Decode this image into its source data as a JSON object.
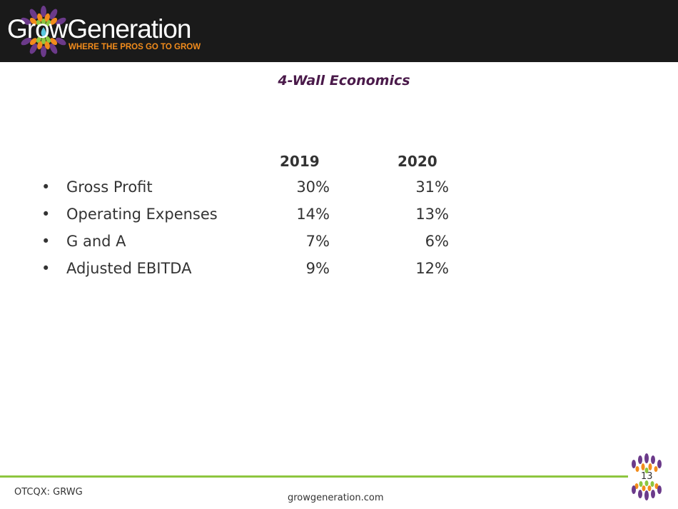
{
  "header": {
    "logo_text": "GrowGeneration",
    "tagline": "WHERE THE PROS GO TO GROW"
  },
  "title": "4-Wall Economics",
  "columns": [
    "2019",
    "2020"
  ],
  "rows": [
    {
      "label": "Gross Profit",
      "v2019": "30%",
      "v2020": "31%"
    },
    {
      "label": "Operating Expenses",
      "v2019": "14%",
      "v2020": "13%"
    },
    {
      "label": "G and A",
      "v2019": "7%",
      "v2020": "6%"
    },
    {
      "label": "Adjusted EBITDA",
      "v2019": "9%",
      "v2020": "12%"
    }
  ],
  "footer": {
    "ticker": "OTCQX: GRWG",
    "website": "growgeneration.com",
    "page": "13"
  },
  "colors": {
    "accent": "#8dc63f",
    "title": "#4a1a4a",
    "orange": "#f28c1c",
    "purple": "#5b2a6e"
  }
}
